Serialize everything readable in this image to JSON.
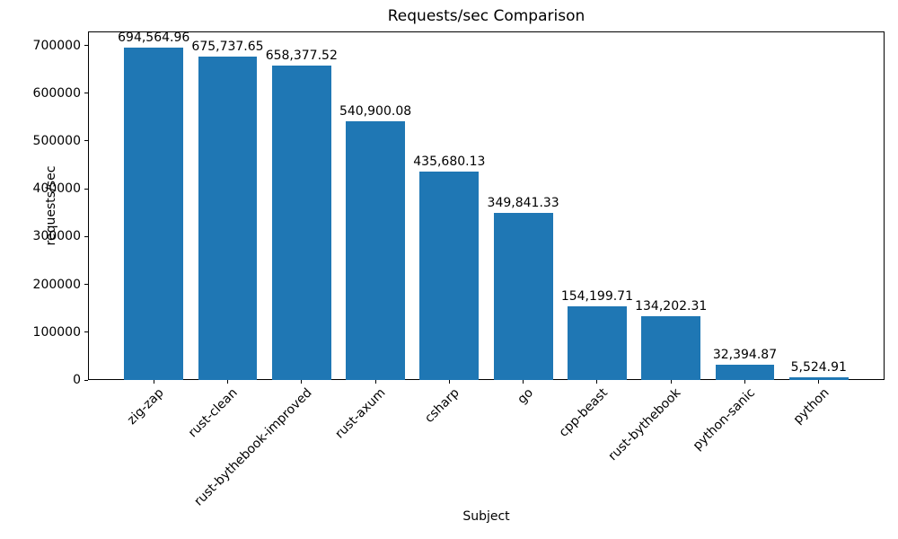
{
  "chart_data": {
    "type": "bar",
    "title": "Requests/sec Comparison",
    "xlabel": "Subject",
    "ylabel": "requests/sec",
    "categories": [
      "zig-zap",
      "rust-clean",
      "rust-bythebook-improved",
      "rust-axum",
      "csharp",
      "go",
      "cpp-beast",
      "rust-bythebook",
      "python-sanic",
      "python"
    ],
    "values": [
      694564.96,
      675737.65,
      658377.52,
      540900.08,
      435680.13,
      349841.33,
      154199.71,
      134202.31,
      32394.87,
      5524.91
    ],
    "value_labels": [
      "694,564.96",
      "675,737.65",
      "658,377.52",
      "540,900.08",
      "435,680.13",
      "349,841.33",
      "154,199.71",
      "134,202.31",
      "32,394.87",
      "5,524.91"
    ],
    "yticks": [
      0,
      100000,
      200000,
      300000,
      400000,
      500000,
      600000,
      700000
    ],
    "ytick_labels": [
      "0",
      "100000",
      "200000",
      "300000",
      "400000",
      "500000",
      "600000",
      "700000"
    ],
    "ylim": [
      0,
      729293
    ],
    "bar_color": "#1f77b4",
    "text_color": "#000000",
    "grid": false,
    "legend": null,
    "x_tick_rotation": 45
  }
}
